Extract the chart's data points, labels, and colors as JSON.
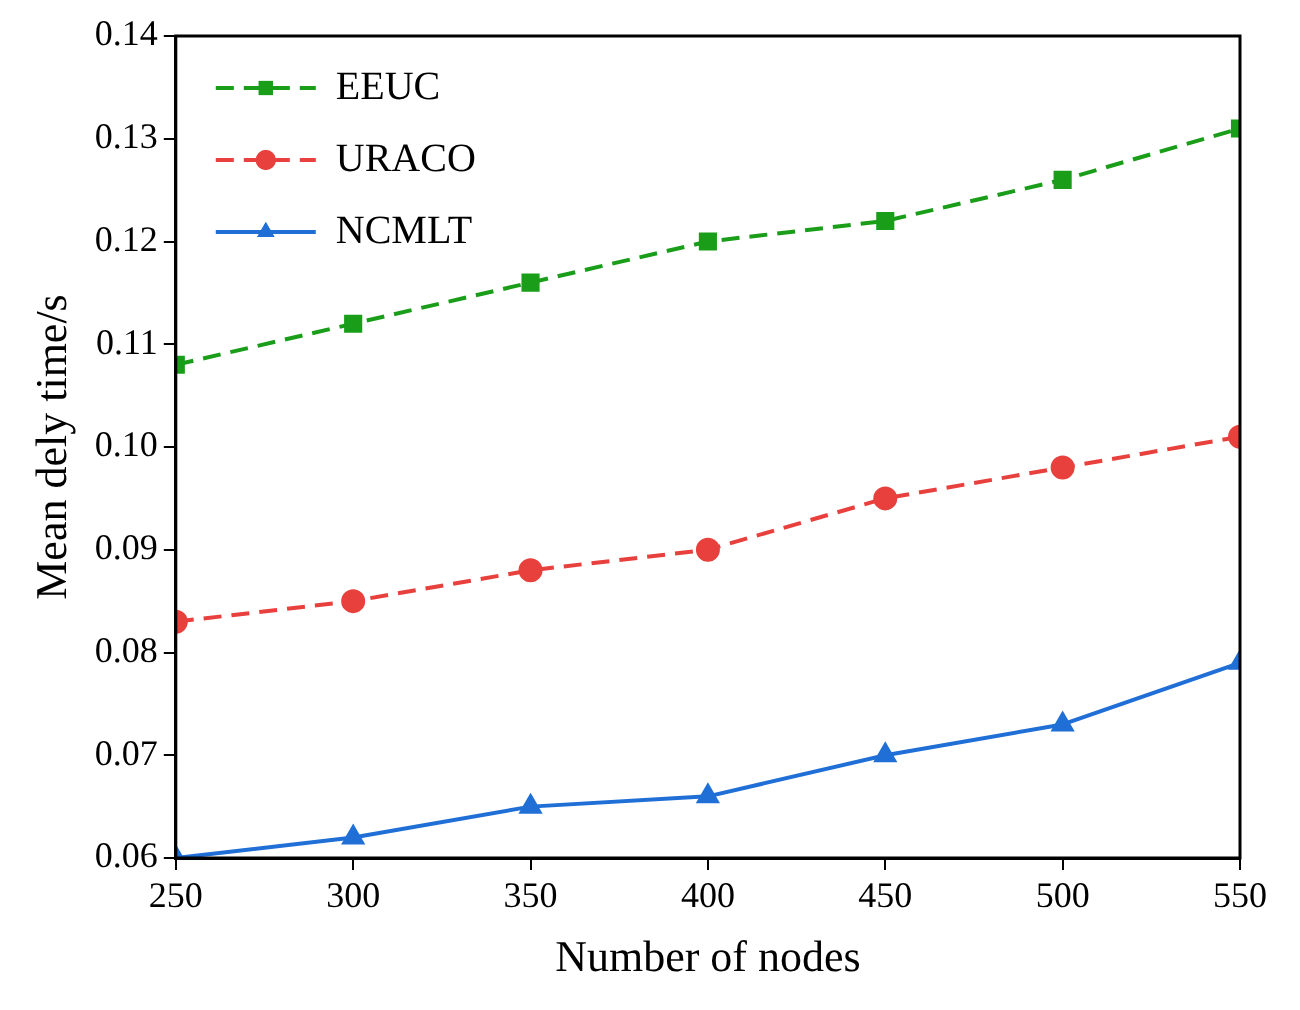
{
  "chart_data": {
    "type": "line",
    "xlabel": "Number of nodes",
    "ylabel": "Mean dely time/s",
    "x": [
      250,
      300,
      350,
      400,
      450,
      500,
      550
    ],
    "series": [
      {
        "name": "EEUC",
        "color": "#1a9e1a",
        "values": [
          0.108,
          0.112,
          0.116,
          0.12,
          0.122,
          0.126,
          0.131
        ],
        "marker": "square",
        "line_style": "dashed"
      },
      {
        "name": "URACO",
        "color": "#e8403c",
        "values": [
          0.083,
          0.085,
          0.088,
          0.09,
          0.095,
          0.098,
          0.101
        ],
        "marker": "circle",
        "line_style": "dashed"
      },
      {
        "name": "NCMLT",
        "color": "#1f6fd6",
        "values": [
          0.06,
          0.062,
          0.065,
          0.066,
          0.07,
          0.073,
          0.079
        ],
        "marker": "triangle",
        "line_style": "solid"
      }
    ],
    "xlim": [
      250,
      550
    ],
    "xticks": [
      250,
      300,
      350,
      400,
      450,
      500,
      550
    ],
    "ylim": [
      0.06,
      0.14
    ],
    "yticks": [
      {
        "value": 0.06,
        "label": "0.06"
      },
      {
        "value": 0.07,
        "label": "0.07"
      },
      {
        "value": 0.08,
        "label": "0.08"
      },
      {
        "value": 0.09,
        "label": "0.09"
      },
      {
        "value": 0.1,
        "label": "0.10"
      },
      {
        "value": 0.11,
        "label": "0.11"
      },
      {
        "value": 0.12,
        "label": "0.12"
      },
      {
        "value": 0.13,
        "label": "0.13"
      },
      {
        "value": 0.14,
        "label": "0.14"
      }
    ],
    "grid": false,
    "legend": "top left"
  }
}
